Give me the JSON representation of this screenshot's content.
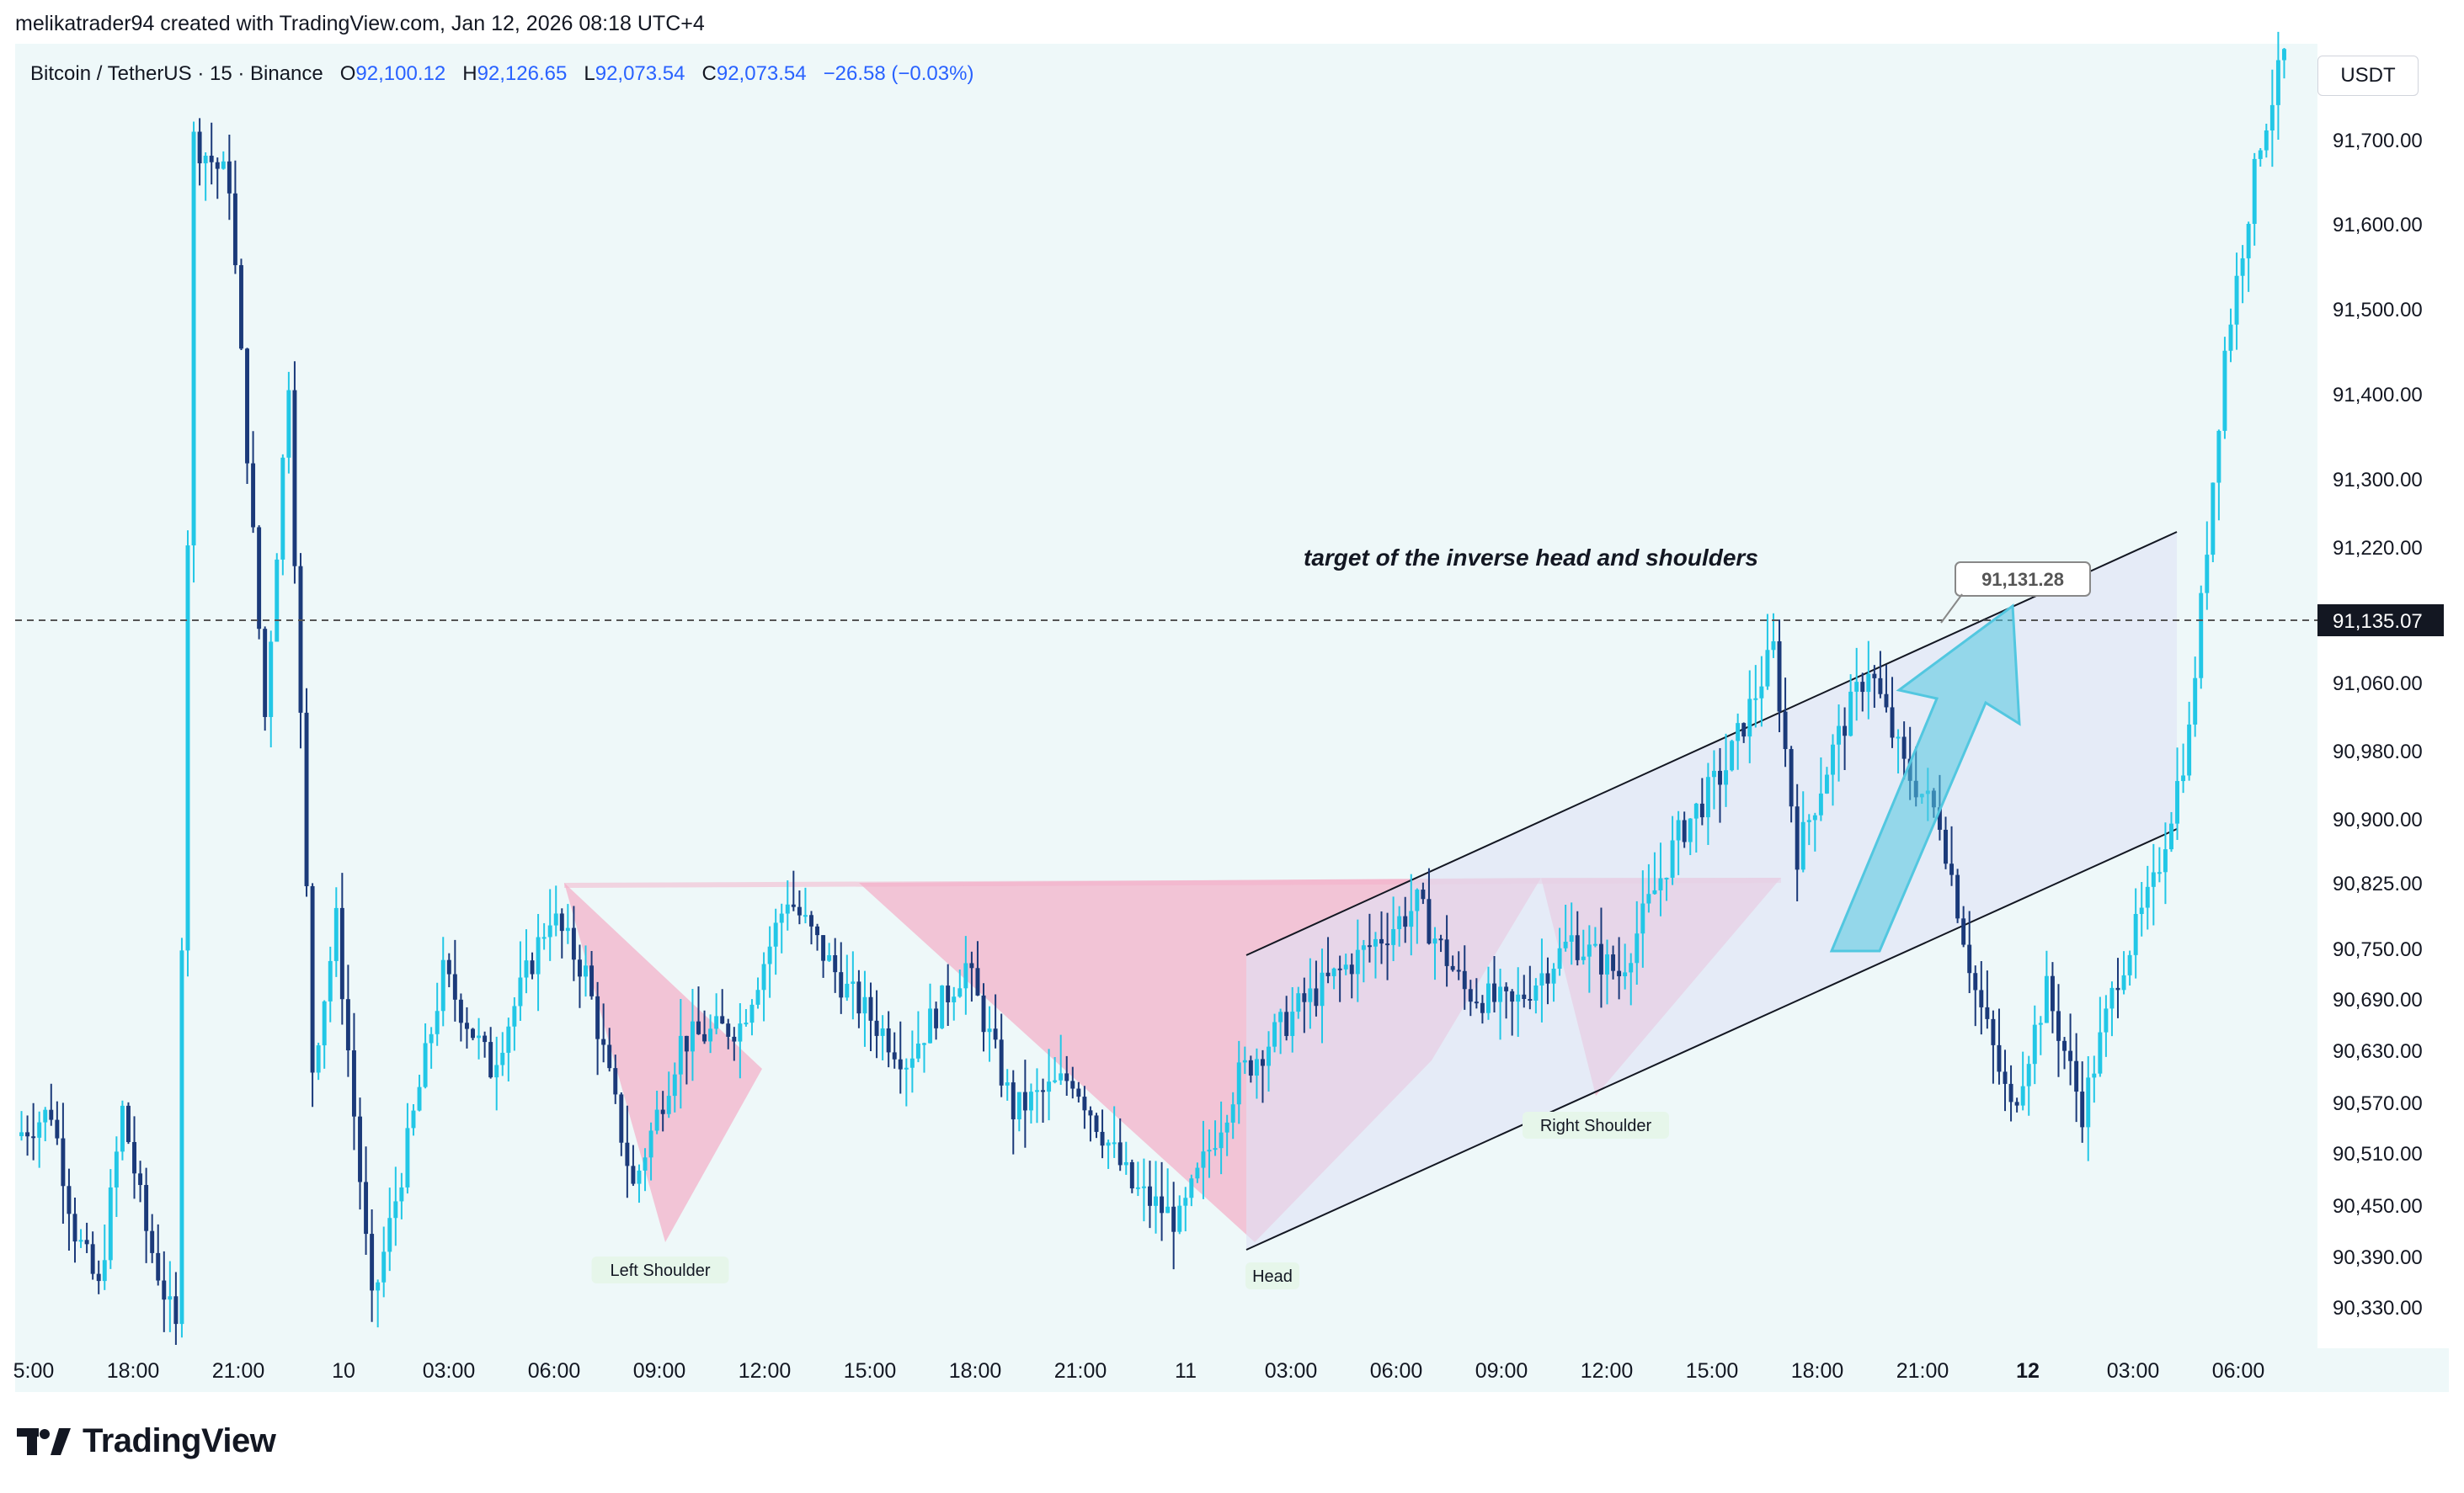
{
  "header": {
    "credit": "melikatrader94 created with TradingView.com, Jan 12, 2026 08:18 UTC+4"
  },
  "symbol": {
    "name": "Bitcoin / TetherUS · 15 · Binance",
    "o_label": "O",
    "o": "92,100.12",
    "h_label": "H",
    "h": "92,126.65",
    "l_label": "L",
    "l": "92,073.54",
    "c_label": "C",
    "c": "92,073.54",
    "change": "−26.58 (−0.03%)"
  },
  "currency": "USDT",
  "brand": {
    "logo_text": "TradingView"
  },
  "colors": {
    "up": "#22c7e6",
    "down": "#1b3a7a",
    "pattern_fill": "#f3aec8",
    "channel_fill": "#dfe3f5",
    "arrow": "#52c7e0",
    "background": "#eef8f9"
  },
  "chart_data": {
    "type": "candlestick",
    "title": "",
    "annotation_title": "target of the inverse head and shoulders",
    "ylim": [
      90280,
      91800
    ],
    "y_ticks": [
      90330,
      90390,
      90450,
      90510,
      90570,
      90630,
      90690,
      90750,
      90825,
      90900,
      90980,
      91060,
      91135.07,
      91220,
      91300,
      91400,
      91500,
      91600,
      91700
    ],
    "y_tick_labels": [
      "90,330.00",
      "90,390.00",
      "90,450.00",
      "90,510.00",
      "90,570.00",
      "90,630.00",
      "90,690.00",
      "90,750.00",
      "90,825.00",
      "90,900.00",
      "90,980.00",
      "91,060.00",
      "",
      "91,220.00",
      "91,300.00",
      "91,400.00",
      "91,500.00",
      "91,600.00",
      "91,700.00"
    ],
    "x_ticks": [
      ":00",
      "18:00",
      "21:00",
      "10",
      "03:00",
      "06:00",
      "09:00",
      "12:00",
      "15:00",
      "18:00",
      "21:00",
      "11",
      "03:00",
      "06:00",
      "09:00",
      "12:00",
      "15:00",
      "18:00",
      "21:00",
      "12",
      "03:00",
      "06:00"
    ],
    "x_tick_first_label": "5:00",
    "current_price": {
      "value": 91135.07,
      "label": "91,135.07"
    },
    "target_price": {
      "value": 91131.28,
      "label": "91,131.28"
    },
    "pattern": {
      "name": "inverse head and shoulders",
      "labels": [
        "Left Shoulder",
        "Head",
        "Right Shoulder"
      ],
      "neckline": 90830,
      "left_shoulder_low": 90400,
      "head_low": 90395,
      "right_shoulder_low": 90575
    },
    "channel": {
      "upper": [
        [
          90750,
          91230
        ]
      ],
      "lower": [
        [
          90395,
          90890
        ]
      ]
    },
    "candles": []
  }
}
